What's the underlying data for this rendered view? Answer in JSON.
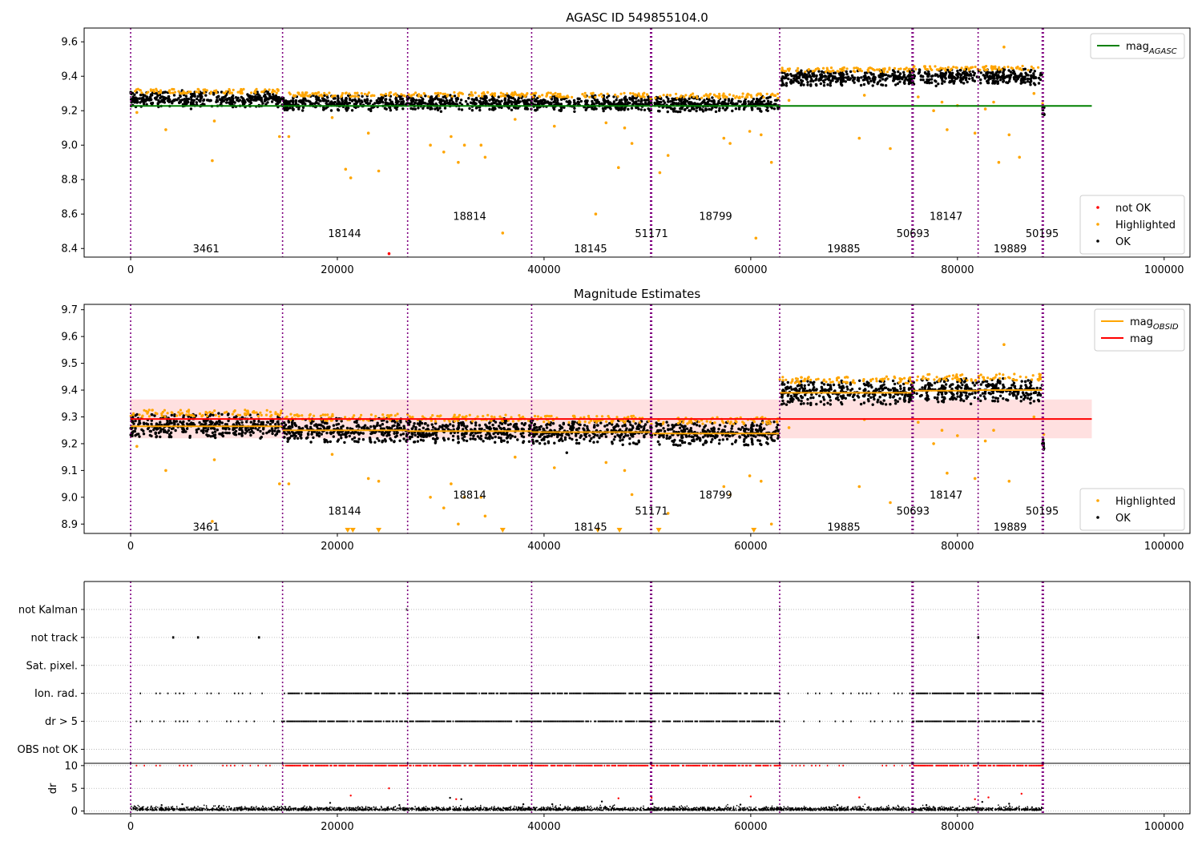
{
  "chart_data": [
    {
      "type": "scatter",
      "title": "AGASC ID 549855104.0",
      "xlabel": "",
      "ylabel": "",
      "xlim": [
        -4500,
        102500
      ],
      "ylim": [
        8.35,
        9.68
      ],
      "xticks": [
        0,
        20000,
        40000,
        60000,
        80000,
        100000
      ],
      "yticks": [
        8.4,
        8.6,
        8.8,
        9.0,
        9.2,
        9.4,
        9.6
      ],
      "ytick_decimals": 1,
      "grid": false,
      "legend_placement": "top-right",
      "legend2_placement": "lower-right",
      "legend": [
        {
          "label": "mag",
          "sub": "AGASC",
          "kind": "line",
          "color": "#008000"
        }
      ],
      "legend2": [
        {
          "label": "not OK",
          "kind": "point",
          "color": "#ff0000"
        },
        {
          "label": "Highlighted",
          "kind": "point",
          "color": "#ffa500"
        },
        {
          "label": "OK",
          "kind": "point",
          "color": "#000000"
        }
      ],
      "mag_agasc": {
        "value": 9.228,
        "x_range": [
          0,
          93000
        ],
        "color": "#008000"
      },
      "observation_boundaries": [
        0,
        14700,
        26800,
        38800,
        50300,
        62800,
        75600,
        82000,
        88200
      ],
      "observations": [
        {
          "obsid": "3461",
          "x_range": [
            0,
            14700
          ],
          "level": 9.265,
          "label_x": 7300,
          "label_y": 8.4
        },
        {
          "obsid": "18144",
          "x_range": [
            14700,
            26800
          ],
          "level": 9.245,
          "label_x": 20700,
          "label_y": 8.49
        },
        {
          "obsid": "18814",
          "x_range": [
            26800,
            38800
          ],
          "level": 9.247,
          "label_x": 32800,
          "label_y": 8.59
        },
        {
          "obsid": "18145",
          "x_range": [
            38800,
            50300
          ],
          "level": 9.243,
          "label_x": 44500,
          "label_y": 8.4
        },
        {
          "obsid": "51171",
          "x_range": [
            50300,
            50400
          ],
          "level": 9.24,
          "label_x": 50400,
          "label_y": 8.49
        },
        {
          "obsid": "18799",
          "x_range": [
            50400,
            62800
          ],
          "level": 9.238,
          "label_x": 56600,
          "label_y": 8.59
        },
        {
          "obsid": "19885",
          "x_range": [
            62800,
            75600
          ],
          "level": 9.39,
          "label_x": 69000,
          "label_y": 8.4
        },
        {
          "obsid": "50693",
          "x_range": [
            75600,
            75700
          ],
          "level": 9.39,
          "label_x": 75700,
          "label_y": 8.49
        },
        {
          "obsid": "18147",
          "x_range": [
            75700,
            82000
          ],
          "level": 9.398,
          "label_x": 78900,
          "label_y": 8.59
        },
        {
          "obsid": "19889",
          "x_range": [
            82000,
            88200
          ],
          "level": 9.4,
          "label_x": 85100,
          "label_y": 8.4
        },
        {
          "obsid": "50195",
          "x_range": [
            88200,
            88400
          ],
          "level": 9.2,
          "label_x": 88200,
          "label_y": 8.49
        }
      ],
      "not_ok_points": [
        [
          25000,
          8.37
        ]
      ],
      "highlighted_outliers": [
        [
          600,
          9.19
        ],
        [
          3400,
          9.09
        ],
        [
          7900,
          8.91
        ],
        [
          8100,
          9.14
        ],
        [
          14400,
          9.05
        ],
        [
          15300,
          9.05
        ],
        [
          19500,
          9.16
        ],
        [
          20800,
          8.86
        ],
        [
          21300,
          8.81
        ],
        [
          23000,
          9.07
        ],
        [
          24000,
          8.85
        ],
        [
          29000,
          9.0
        ],
        [
          30300,
          8.96
        ],
        [
          31000,
          9.05
        ],
        [
          31700,
          8.9
        ],
        [
          32300,
          9.0
        ],
        [
          33900,
          9.0
        ],
        [
          34300,
          8.93
        ],
        [
          36000,
          8.49
        ],
        [
          37200,
          9.15
        ],
        [
          41000,
          9.11
        ],
        [
          45000,
          8.6
        ],
        [
          46000,
          9.13
        ],
        [
          47200,
          8.87
        ],
        [
          47800,
          9.1
        ],
        [
          48500,
          9.01
        ],
        [
          51200,
          8.84
        ],
        [
          52000,
          8.94
        ],
        [
          57400,
          9.04
        ],
        [
          58000,
          9.01
        ],
        [
          59900,
          9.08
        ],
        [
          60500,
          8.46
        ],
        [
          61000,
          9.06
        ],
        [
          62000,
          8.9
        ],
        [
          63700,
          9.26
        ],
        [
          70500,
          9.04
        ],
        [
          71000,
          9.29
        ],
        [
          73500,
          8.98
        ],
        [
          76200,
          9.28
        ],
        [
          77700,
          9.2
        ],
        [
          78500,
          9.25
        ],
        [
          79000,
          9.09
        ],
        [
          80000,
          9.23
        ],
        [
          81700,
          9.07
        ],
        [
          82700,
          9.21
        ],
        [
          83500,
          9.25
        ],
        [
          84000,
          8.9
        ],
        [
          84500,
          9.57
        ],
        [
          85000,
          9.06
        ],
        [
          86000,
          8.93
        ],
        [
          87400,
          9.3
        ]
      ]
    },
    {
      "type": "scatter",
      "title": "Magnitude Estimates",
      "xlabel": "",
      "ylabel": "",
      "xlim": [
        -4500,
        102500
      ],
      "ylim": [
        8.865,
        9.72
      ],
      "xticks": [
        0,
        20000,
        40000,
        60000,
        80000,
        100000
      ],
      "yticks": [
        8.9,
        9.0,
        9.1,
        9.2,
        9.3,
        9.4,
        9.5,
        9.6,
        9.7
      ],
      "ytick_decimals": 1,
      "grid": false,
      "legend_placement": "top-right",
      "legend2_placement": "lower-right",
      "legend": [
        {
          "label": "mag",
          "sub": "OBSID",
          "kind": "line",
          "color": "#ffa500"
        },
        {
          "label": "mag",
          "kind": "line",
          "color": "#ff0000"
        }
      ],
      "legend2": [
        {
          "label": "Highlighted",
          "kind": "point",
          "color": "#ffa500"
        },
        {
          "label": "OK",
          "kind": "point",
          "color": "#000000"
        }
      ],
      "mag": {
        "value": 9.292,
        "band": [
          9.22,
          9.365
        ],
        "x_range": [
          0,
          93000
        ],
        "color": "#ff0000"
      },
      "observation_boundaries": [
        0,
        14700,
        26800,
        38800,
        50300,
        62800,
        75600,
        82000,
        88200
      ],
      "observations": [
        {
          "obsid": "3461",
          "x_range": [
            0,
            14700
          ],
          "level": 9.265,
          "label_x": 7300,
          "label_y": 8.89
        },
        {
          "obsid": "18144",
          "x_range": [
            14700,
            26800
          ],
          "level": 9.25,
          "label_x": 20700,
          "label_y": 8.95
        },
        {
          "obsid": "18814",
          "x_range": [
            26800,
            38800
          ],
          "level": 9.247,
          "label_x": 32800,
          "label_y": 9.01
        },
        {
          "obsid": "18145",
          "x_range": [
            38800,
            50300
          ],
          "level": 9.243,
          "label_x": 44500,
          "label_y": 8.89
        },
        {
          "obsid": "51171",
          "x_range": [
            50300,
            50400
          ],
          "level": 9.24,
          "label_x": 50400,
          "label_y": 8.95
        },
        {
          "obsid": "18799",
          "x_range": [
            50400,
            62800
          ],
          "level": 9.238,
          "label_x": 56600,
          "label_y": 9.01
        },
        {
          "obsid": "19885",
          "x_range": [
            62800,
            75600
          ],
          "level": 9.39,
          "label_x": 69000,
          "label_y": 8.89
        },
        {
          "obsid": "50693",
          "x_range": [
            75600,
            75700
          ],
          "level": 9.39,
          "label_x": 75700,
          "label_y": 8.95
        },
        {
          "obsid": "18147",
          "x_range": [
            75700,
            82000
          ],
          "level": 9.398,
          "label_x": 78900,
          "label_y": 9.01
        },
        {
          "obsid": "19889",
          "x_range": [
            82000,
            88200
          ],
          "level": 9.4,
          "label_x": 85100,
          "label_y": 8.89
        },
        {
          "obsid": "50195",
          "x_range": [
            88200,
            88400
          ],
          "level": 9.2,
          "label_x": 88200,
          "label_y": 8.95
        }
      ],
      "clipped_marker_x": [
        21000,
        21500,
        24000,
        36000,
        45200,
        47300,
        51100,
        60300
      ],
      "highlighted_outliers": [
        [
          600,
          9.19
        ],
        [
          3400,
          9.1
        ],
        [
          7900,
          8.91
        ],
        [
          8100,
          9.14
        ],
        [
          14400,
          9.05
        ],
        [
          15300,
          9.05
        ],
        [
          19500,
          9.16
        ],
        [
          23000,
          9.07
        ],
        [
          24000,
          9.06
        ],
        [
          29000,
          9.0
        ],
        [
          30300,
          8.96
        ],
        [
          31000,
          9.05
        ],
        [
          31700,
          8.9
        ],
        [
          32300,
          9.0
        ],
        [
          33900,
          9.0
        ],
        [
          34300,
          8.93
        ],
        [
          37200,
          9.15
        ],
        [
          41000,
          9.11
        ],
        [
          46000,
          9.13
        ],
        [
          47800,
          9.1
        ],
        [
          48500,
          9.01
        ],
        [
          52000,
          8.94
        ],
        [
          57400,
          9.04
        ],
        [
          58000,
          9.01
        ],
        [
          59900,
          9.08
        ],
        [
          61000,
          9.06
        ],
        [
          62000,
          8.9
        ],
        [
          63700,
          9.26
        ],
        [
          70500,
          9.04
        ],
        [
          71000,
          9.29
        ],
        [
          73500,
          8.98
        ],
        [
          76200,
          9.28
        ],
        [
          77700,
          9.2
        ],
        [
          78500,
          9.25
        ],
        [
          79000,
          9.09
        ],
        [
          80000,
          9.23
        ],
        [
          81700,
          9.07
        ],
        [
          82700,
          9.21
        ],
        [
          83500,
          9.25
        ],
        [
          84500,
          9.57
        ],
        [
          85000,
          9.06
        ],
        [
          87400,
          9.3
        ]
      ]
    },
    {
      "type": "scatter",
      "title": "",
      "xlabel": "",
      "ylabel": "",
      "xlim": [
        -4500,
        102500
      ],
      "ylim": [
        -0.5,
        6.0
      ],
      "xticks": [],
      "yticks": [
        0,
        1,
        2,
        3,
        4,
        5
      ],
      "ytick_labels": [
        "OBS not OK",
        "dr > 5",
        "Ion. rad.",
        "Sat. pixel.",
        "not track",
        "not Kalman"
      ],
      "grid": "y-dotted",
      "observation_boundaries": [
        0,
        14700,
        26800,
        38800,
        50300,
        62800,
        75600,
        82000,
        88200
      ],
      "flags": {
        "not track": [
          4100,
          6500,
          12400,
          82000
        ],
        "not Kalman": [
          26700,
          62800
        ],
        "Ion. rad.": {
          "dense_ranges": [
            [
              14700,
              62800
            ],
            [
              75600,
              88200
            ]
          ],
          "sparse_ranges": [
            [
              500,
              14700
            ],
            [
              62800,
              75600
            ]
          ]
        },
        "dr > 5": {
          "dense_ranges": [
            [
              14700,
              62800
            ],
            [
              75600,
              88200
            ]
          ],
          "sparse_ranges": [
            [
              500,
              14700
            ],
            [
              62800,
              75600
            ]
          ]
        }
      }
    },
    {
      "type": "scatter",
      "title": "",
      "xlabel": "",
      "ylabel": "dr",
      "xlim": [
        -4500,
        102500
      ],
      "ylim": [
        -0.6,
        10.5
      ],
      "xticks": [
        0,
        20000,
        40000,
        60000,
        80000,
        100000
      ],
      "yticks": [
        0,
        5,
        10
      ],
      "grid": "y-dotted",
      "observation_boundaries": [
        0,
        14700,
        26800,
        38800,
        50300,
        62800,
        75600,
        82000,
        88200
      ],
      "dr_clipped_value": 10,
      "dr_red_points": [
        [
          21300,
          3.4
        ],
        [
          25000,
          5.0
        ],
        [
          31500,
          2.6
        ],
        [
          47200,
          2.8
        ],
        [
          50400,
          2.9
        ],
        [
          60000,
          3.2
        ],
        [
          70500,
          3.0
        ],
        [
          81700,
          2.6
        ],
        [
          83000,
          3.0
        ],
        [
          86200,
          3.8
        ]
      ],
      "dr_black_points": [
        [
          3000,
          1.3
        ],
        [
          5000,
          1.5
        ],
        [
          19300,
          1.8
        ],
        [
          26000,
          1.3
        ],
        [
          30900,
          2.9
        ],
        [
          32000,
          2.6
        ],
        [
          38000,
          1.5
        ],
        [
          40800,
          1.5
        ],
        [
          45600,
          2.1
        ],
        [
          50500,
          1.6
        ],
        [
          59000,
          1.4
        ],
        [
          68400,
          1.3
        ],
        [
          77000,
          1.3
        ],
        [
          82400,
          2.0
        ],
        [
          85000,
          1.6
        ]
      ]
    }
  ]
}
